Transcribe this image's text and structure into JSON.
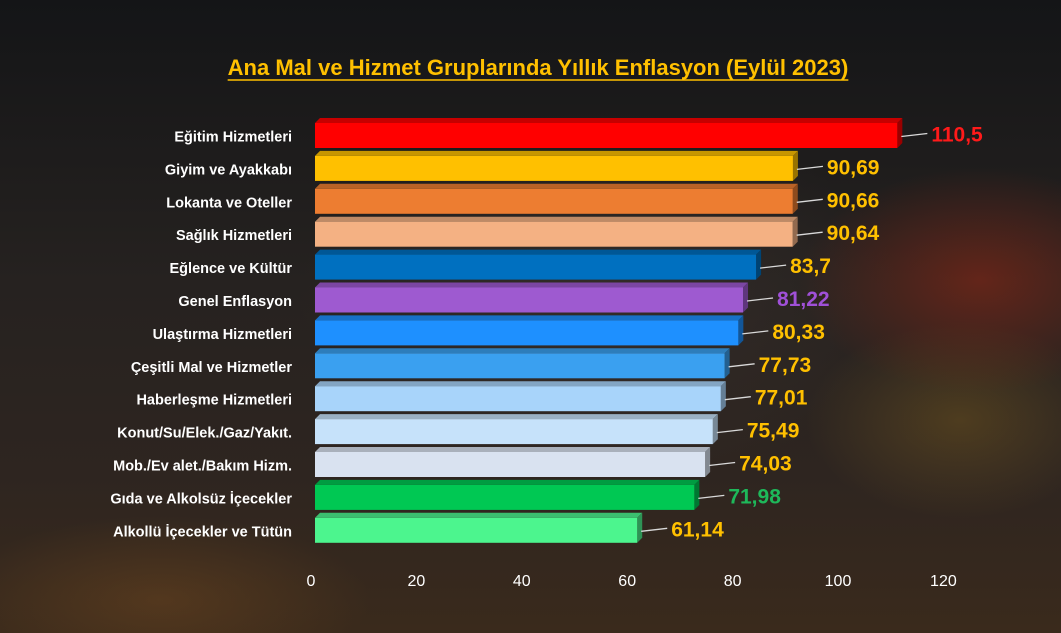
{
  "chart_data": {
    "type": "bar",
    "orientation": "horizontal",
    "title": " Ana Mal ve Hizmet Gruplarında Yıllık Enflasyon (Eylül 2023)",
    "xlabel": "",
    "ylabel": "",
    "xlim": [
      0,
      120
    ],
    "ticks": [
      "0",
      "20",
      "40",
      "60",
      "80",
      "100",
      "120"
    ],
    "grid": false,
    "categories": [
      "Eğitim Hizmetleri",
      "Giyim ve Ayakkabı",
      "Lokanta ve Oteller",
      "Sağlık Hizmetleri",
      "Eğlence ve Kültür",
      "Genel Enflasyon",
      "Ulaştırma Hizmetleri",
      "Çeşitli Mal ve Hizmetler",
      "Haberleşme Hizmetleri",
      "Konut/Su/Elek./Gaz/Yakıt.",
      "Mob./Ev alet./Bakım Hizm.",
      "Gıda ve Alkolsüz İçecekler",
      "Alkollü İçecekler ve Tütün"
    ],
    "values": [
      110.5,
      90.69,
      90.66,
      90.64,
      83.7,
      81.22,
      80.33,
      77.73,
      77.01,
      75.49,
      74.03,
      71.98,
      61.14
    ],
    "value_labels": [
      "110,5",
      "90,69",
      "90,66",
      "90,64",
      "83,7",
      "81,22",
      "80,33",
      "77,73",
      "77,01",
      "75,49",
      "74,03",
      "71,98",
      "61,14"
    ],
    "bar_colors": [
      "#ff0000",
      "#ffc000",
      "#ed7d31",
      "#f4b183",
      "#0070c0",
      "#9e5ad0",
      "#1e90ff",
      "#3aa0f0",
      "#a8d4fa",
      "#c6e2fa",
      "#d9e2f0",
      "#00c853",
      "#4cf58e"
    ],
    "label_colors": [
      "#ff1a1a",
      "#ffc000",
      "#ffc000",
      "#ffc000",
      "#ffc000",
      "#a050d8",
      "#ffc000",
      "#ffc000",
      "#ffc000",
      "#ffc000",
      "#ffc000",
      "#1eb85a",
      "#ffc000"
    ]
  }
}
